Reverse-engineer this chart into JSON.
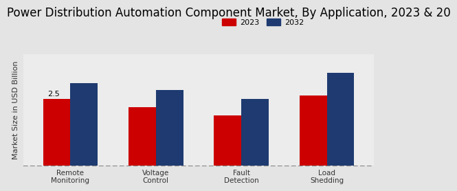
{
  "title": "Power Distribution Automation Component Market, By Application, 2023 & 20",
  "ylabel": "Market Size in USD Billion",
  "categories": [
    "Remote\nMonitoring",
    "Voltage\nControl",
    "Fault\nDetection",
    "Load\nShedding"
  ],
  "values_2023": [
    2.5,
    2.2,
    1.9,
    2.65
  ],
  "values_2032": [
    3.1,
    2.85,
    2.5,
    3.5
  ],
  "color_2023": "#cc0000",
  "color_2032": "#1e3a70",
  "annotation_text": "2.5",
  "background_top": "#e8e8e8",
  "background_bottom": "#f8f8f8",
  "legend_labels": [
    "2023",
    "2032"
  ],
  "bar_width": 0.32,
  "ylim": [
    0,
    4.2
  ],
  "title_fontsize": 12,
  "axis_label_fontsize": 8,
  "tick_fontsize": 7.5
}
